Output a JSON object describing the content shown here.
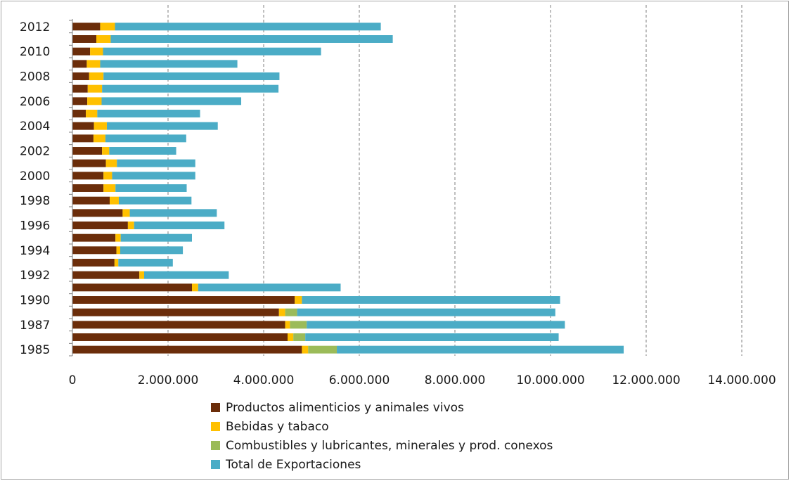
{
  "chart_data": {
    "type": "bar",
    "orientation": "horizontal",
    "stacked": true,
    "title": "",
    "xlabel": "",
    "ylabel": "",
    "xlim": [
      0,
      14000000
    ],
    "x_ticks": [
      "0",
      "2.000.000",
      "4.000.000",
      "6.000.000",
      "8.000.000",
      "10.000.000",
      "12.000.000",
      "14.000.000"
    ],
    "y_tick_labels": [
      "2012",
      "2010",
      "2008",
      "2006",
      "2004",
      "2002",
      "2000",
      "1998",
      "1996",
      "1994",
      "1992",
      "1990",
      "1987",
      "1985"
    ],
    "grid": "vertical dashed",
    "legend_position": "bottom",
    "categories": [
      "2012",
      "2011",
      "2010",
      "2009",
      "2008",
      "2007",
      "2006",
      "2005",
      "2004",
      "2003",
      "2002",
      "2001",
      "2000",
      "1999",
      "1998",
      "1997",
      "1996",
      "1995",
      "1994",
      "1993",
      "1992",
      "1991",
      "1990",
      "1989",
      "1987",
      "1986",
      "1985"
    ],
    "series": [
      {
        "name": "Productos alimenticios y animales vivos",
        "color": "#6b2d0a",
        "values": [
          580000,
          500000,
          370000,
          300000,
          350000,
          320000,
          310000,
          280000,
          450000,
          440000,
          620000,
          700000,
          650000,
          650000,
          780000,
          1050000,
          1160000,
          900000,
          920000,
          880000,
          1400000,
          2500000,
          4650000,
          4320000,
          4450000,
          4500000,
          4800000
        ]
      },
      {
        "name": "Bebidas y tabaco",
        "color": "#ffc000",
        "values": [
          310000,
          300000,
          270000,
          280000,
          300000,
          300000,
          300000,
          240000,
          270000,
          250000,
          150000,
          230000,
          180000,
          250000,
          190000,
          150000,
          130000,
          110000,
          80000,
          80000,
          100000,
          130000,
          150000,
          130000,
          100000,
          120000,
          130000
        ]
      },
      {
        "name": "Combustibles y lubricantes, minerales y prod. conexos",
        "color": "#9bbb59",
        "values": [
          0,
          0,
          0,
          0,
          0,
          0,
          0,
          0,
          0,
          0,
          0,
          0,
          0,
          0,
          0,
          0,
          0,
          0,
          0,
          0,
          0,
          0,
          0,
          250000,
          350000,
          250000,
          600000
        ]
      },
      {
        "name": "Total de Exportaciones",
        "color": "#4bacc6",
        "values": [
          5560000,
          5900000,
          4560000,
          2870000,
          3680000,
          3690000,
          2920000,
          2150000,
          2320000,
          1690000,
          1400000,
          1640000,
          1740000,
          1490000,
          1520000,
          1820000,
          1890000,
          1490000,
          1310000,
          1140000,
          1770000,
          2980000,
          5400000,
          5400000,
          5400000,
          5300000,
          6000000
        ]
      }
    ]
  }
}
